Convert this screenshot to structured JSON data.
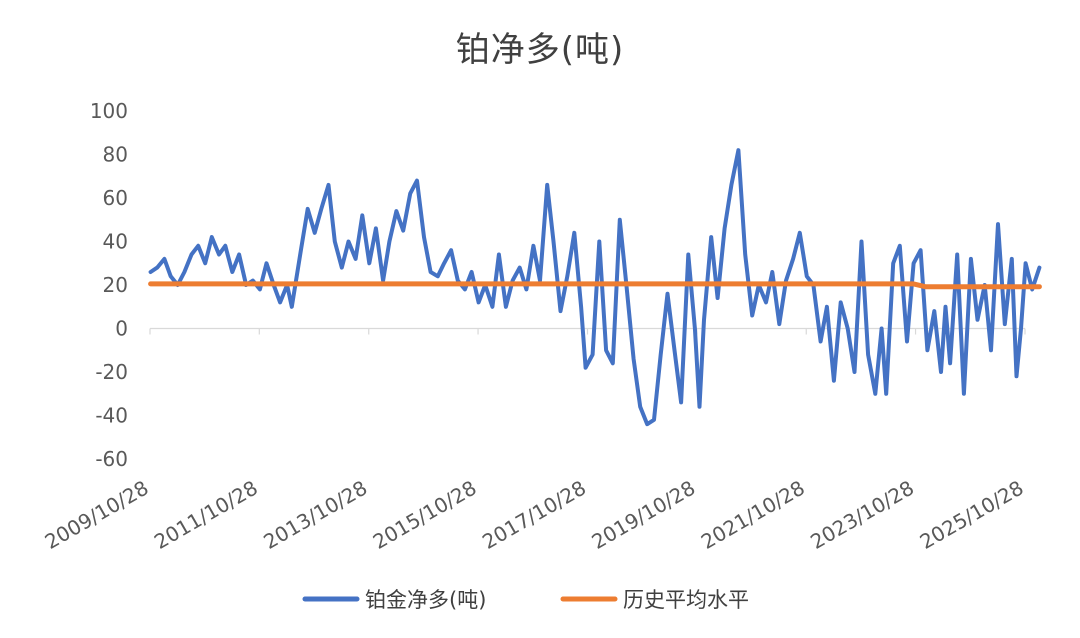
{
  "chart_data": {
    "type": "line",
    "title": "铂净多(吨)",
    "xlabel": "",
    "ylabel": "",
    "ylim": [
      -60,
      100
    ],
    "y_ticks": [
      100,
      80,
      60,
      40,
      20,
      0,
      -20,
      -40,
      -60
    ],
    "x_range": [
      "2009/10/28",
      "2025/10/28"
    ],
    "x_ticks": [
      "2009/10/28",
      "2011/10/28",
      "2013/10/28",
      "2015/10/28",
      "2017/10/28",
      "2019/10/28",
      "2021/10/28",
      "2023/10/28",
      "2025/10/28"
    ],
    "grid": false,
    "legend_position": "bottom",
    "series": [
      {
        "name": "铂金净多(吨)",
        "color": "#4472C4",
        "points": [
          [
            "2009/11/01",
            26
          ],
          [
            "2009/12/15",
            28
          ],
          [
            "2010/02/01",
            32
          ],
          [
            "2010/03/15",
            24
          ],
          [
            "2010/05/01",
            20
          ],
          [
            "2010/06/15",
            26
          ],
          [
            "2010/08/01",
            34
          ],
          [
            "2010/09/15",
            38
          ],
          [
            "2010/11/01",
            30
          ],
          [
            "2010/12/15",
            42
          ],
          [
            "2011/02/01",
            34
          ],
          [
            "2011/03/15",
            38
          ],
          [
            "2011/05/01",
            26
          ],
          [
            "2011/06/15",
            34
          ],
          [
            "2011/08/01",
            20
          ],
          [
            "2011/09/15",
            22
          ],
          [
            "2011/11/01",
            18
          ],
          [
            "2011/12/15",
            30
          ],
          [
            "2012/02/01",
            20
          ],
          [
            "2012/03/15",
            12
          ],
          [
            "2012/05/01",
            20
          ],
          [
            "2012/06/01",
            10
          ],
          [
            "2012/08/01",
            36
          ],
          [
            "2012/09/15",
            55
          ],
          [
            "2012/11/01",
            44
          ],
          [
            "2012/12/15",
            55
          ],
          [
            "2013/02/01",
            66
          ],
          [
            "2013/03/15",
            40
          ],
          [
            "2013/05/01",
            28
          ],
          [
            "2013/06/15",
            40
          ],
          [
            "2013/08/01",
            32
          ],
          [
            "2013/09/15",
            52
          ],
          [
            "2013/11/01",
            30
          ],
          [
            "2013/12/15",
            46
          ],
          [
            "2014/02/01",
            22
          ],
          [
            "2014/03/15",
            40
          ],
          [
            "2014/05/01",
            54
          ],
          [
            "2014/06/15",
            45
          ],
          [
            "2014/08/01",
            62
          ],
          [
            "2014/09/15",
            68
          ],
          [
            "2014/11/01",
            42
          ],
          [
            "2014/12/15",
            26
          ],
          [
            "2015/02/01",
            24
          ],
          [
            "2015/03/15",
            30
          ],
          [
            "2015/05/01",
            36
          ],
          [
            "2015/06/15",
            22
          ],
          [
            "2015/08/01",
            18
          ],
          [
            "2015/09/15",
            26
          ],
          [
            "2015/11/01",
            12
          ],
          [
            "2015/12/15",
            20
          ],
          [
            "2016/02/01",
            10
          ],
          [
            "2016/03/15",
            34
          ],
          [
            "2016/05/01",
            10
          ],
          [
            "2016/06/15",
            22
          ],
          [
            "2016/08/01",
            28
          ],
          [
            "2016/09/15",
            18
          ],
          [
            "2016/11/01",
            38
          ],
          [
            "2016/12/15",
            22
          ],
          [
            "2017/02/01",
            66
          ],
          [
            "2017/03/15",
            40
          ],
          [
            "2017/05/01",
            8
          ],
          [
            "2017/06/15",
            24
          ],
          [
            "2017/08/01",
            44
          ],
          [
            "2017/09/15",
            10
          ],
          [
            "2017/10/15",
            -18
          ],
          [
            "2017/12/01",
            -12
          ],
          [
            "2018/01/15",
            40
          ],
          [
            "2018/03/01",
            -10
          ],
          [
            "2018/04/15",
            -16
          ],
          [
            "2018/06/01",
            50
          ],
          [
            "2018/07/15",
            20
          ],
          [
            "2018/09/01",
            -14
          ],
          [
            "2018/10/15",
            -36
          ],
          [
            "2018/12/01",
            -44
          ],
          [
            "2019/01/15",
            -42
          ],
          [
            "2019/03/01",
            -12
          ],
          [
            "2019/04/15",
            16
          ],
          [
            "2019/06/01",
            -10
          ],
          [
            "2019/07/15",
            -34
          ],
          [
            "2019/09/01",
            34
          ],
          [
            "2019/10/15",
            0
          ],
          [
            "2019/11/15",
            -36
          ],
          [
            "2019/12/15",
            4
          ],
          [
            "2020/02/01",
            42
          ],
          [
            "2020/03/15",
            14
          ],
          [
            "2020/05/01",
            46
          ],
          [
            "2020/06/15",
            66
          ],
          [
            "2020/08/01",
            82
          ],
          [
            "2020/09/15",
            34
          ],
          [
            "2020/11/01",
            6
          ],
          [
            "2020/12/15",
            20
          ],
          [
            "2021/02/01",
            12
          ],
          [
            "2021/03/15",
            26
          ],
          [
            "2021/05/01",
            2
          ],
          [
            "2021/06/15",
            22
          ],
          [
            "2021/08/01",
            32
          ],
          [
            "2021/09/15",
            44
          ],
          [
            "2021/11/01",
            24
          ],
          [
            "2021/12/15",
            20
          ],
          [
            "2022/02/01",
            -6
          ],
          [
            "2022/03/15",
            10
          ],
          [
            "2022/05/01",
            -24
          ],
          [
            "2022/06/15",
            12
          ],
          [
            "2022/08/01",
            0
          ],
          [
            "2022/09/15",
            -20
          ],
          [
            "2022/11/01",
            40
          ],
          [
            "2022/12/15",
            -12
          ],
          [
            "2023/02/01",
            -30
          ],
          [
            "2023/03/15",
            0
          ],
          [
            "2023/04/15",
            -30
          ],
          [
            "2023/06/01",
            30
          ],
          [
            "2023/07/15",
            38
          ],
          [
            "2023/09/01",
            -6
          ],
          [
            "2023/10/15",
            30
          ],
          [
            "2023/12/01",
            36
          ],
          [
            "2024/01/15",
            -10
          ],
          [
            "2024/03/01",
            8
          ],
          [
            "2024/04/15",
            -20
          ],
          [
            "2024/05/15",
            10
          ],
          [
            "2024/06/15",
            -16
          ],
          [
            "2024/08/01",
            34
          ],
          [
            "2024/09/15",
            -30
          ],
          [
            "2024/11/01",
            32
          ],
          [
            "2024/12/15",
            4
          ],
          [
            "2025/02/01",
            20
          ],
          [
            "2025/03/15",
            -10
          ],
          [
            "2025/05/01",
            48
          ],
          [
            "2025/06/15",
            2
          ],
          [
            "2025/08/01",
            32
          ],
          [
            "2025/09/01",
            -22
          ],
          [
            "2025/10/01",
            0
          ],
          [
            "2025/11/01",
            30
          ],
          [
            "2025/12/15",
            18
          ],
          [
            "2026/02/01",
            28
          ]
        ]
      },
      {
        "name": "历史平均水平",
        "color": "#ED7D31",
        "points": [
          [
            "2009/11/01",
            20.5
          ],
          [
            "2023/10/15",
            20.5
          ],
          [
            "2024/01/01",
            19.2
          ],
          [
            "2026/02/01",
            19.2
          ]
        ]
      }
    ]
  }
}
